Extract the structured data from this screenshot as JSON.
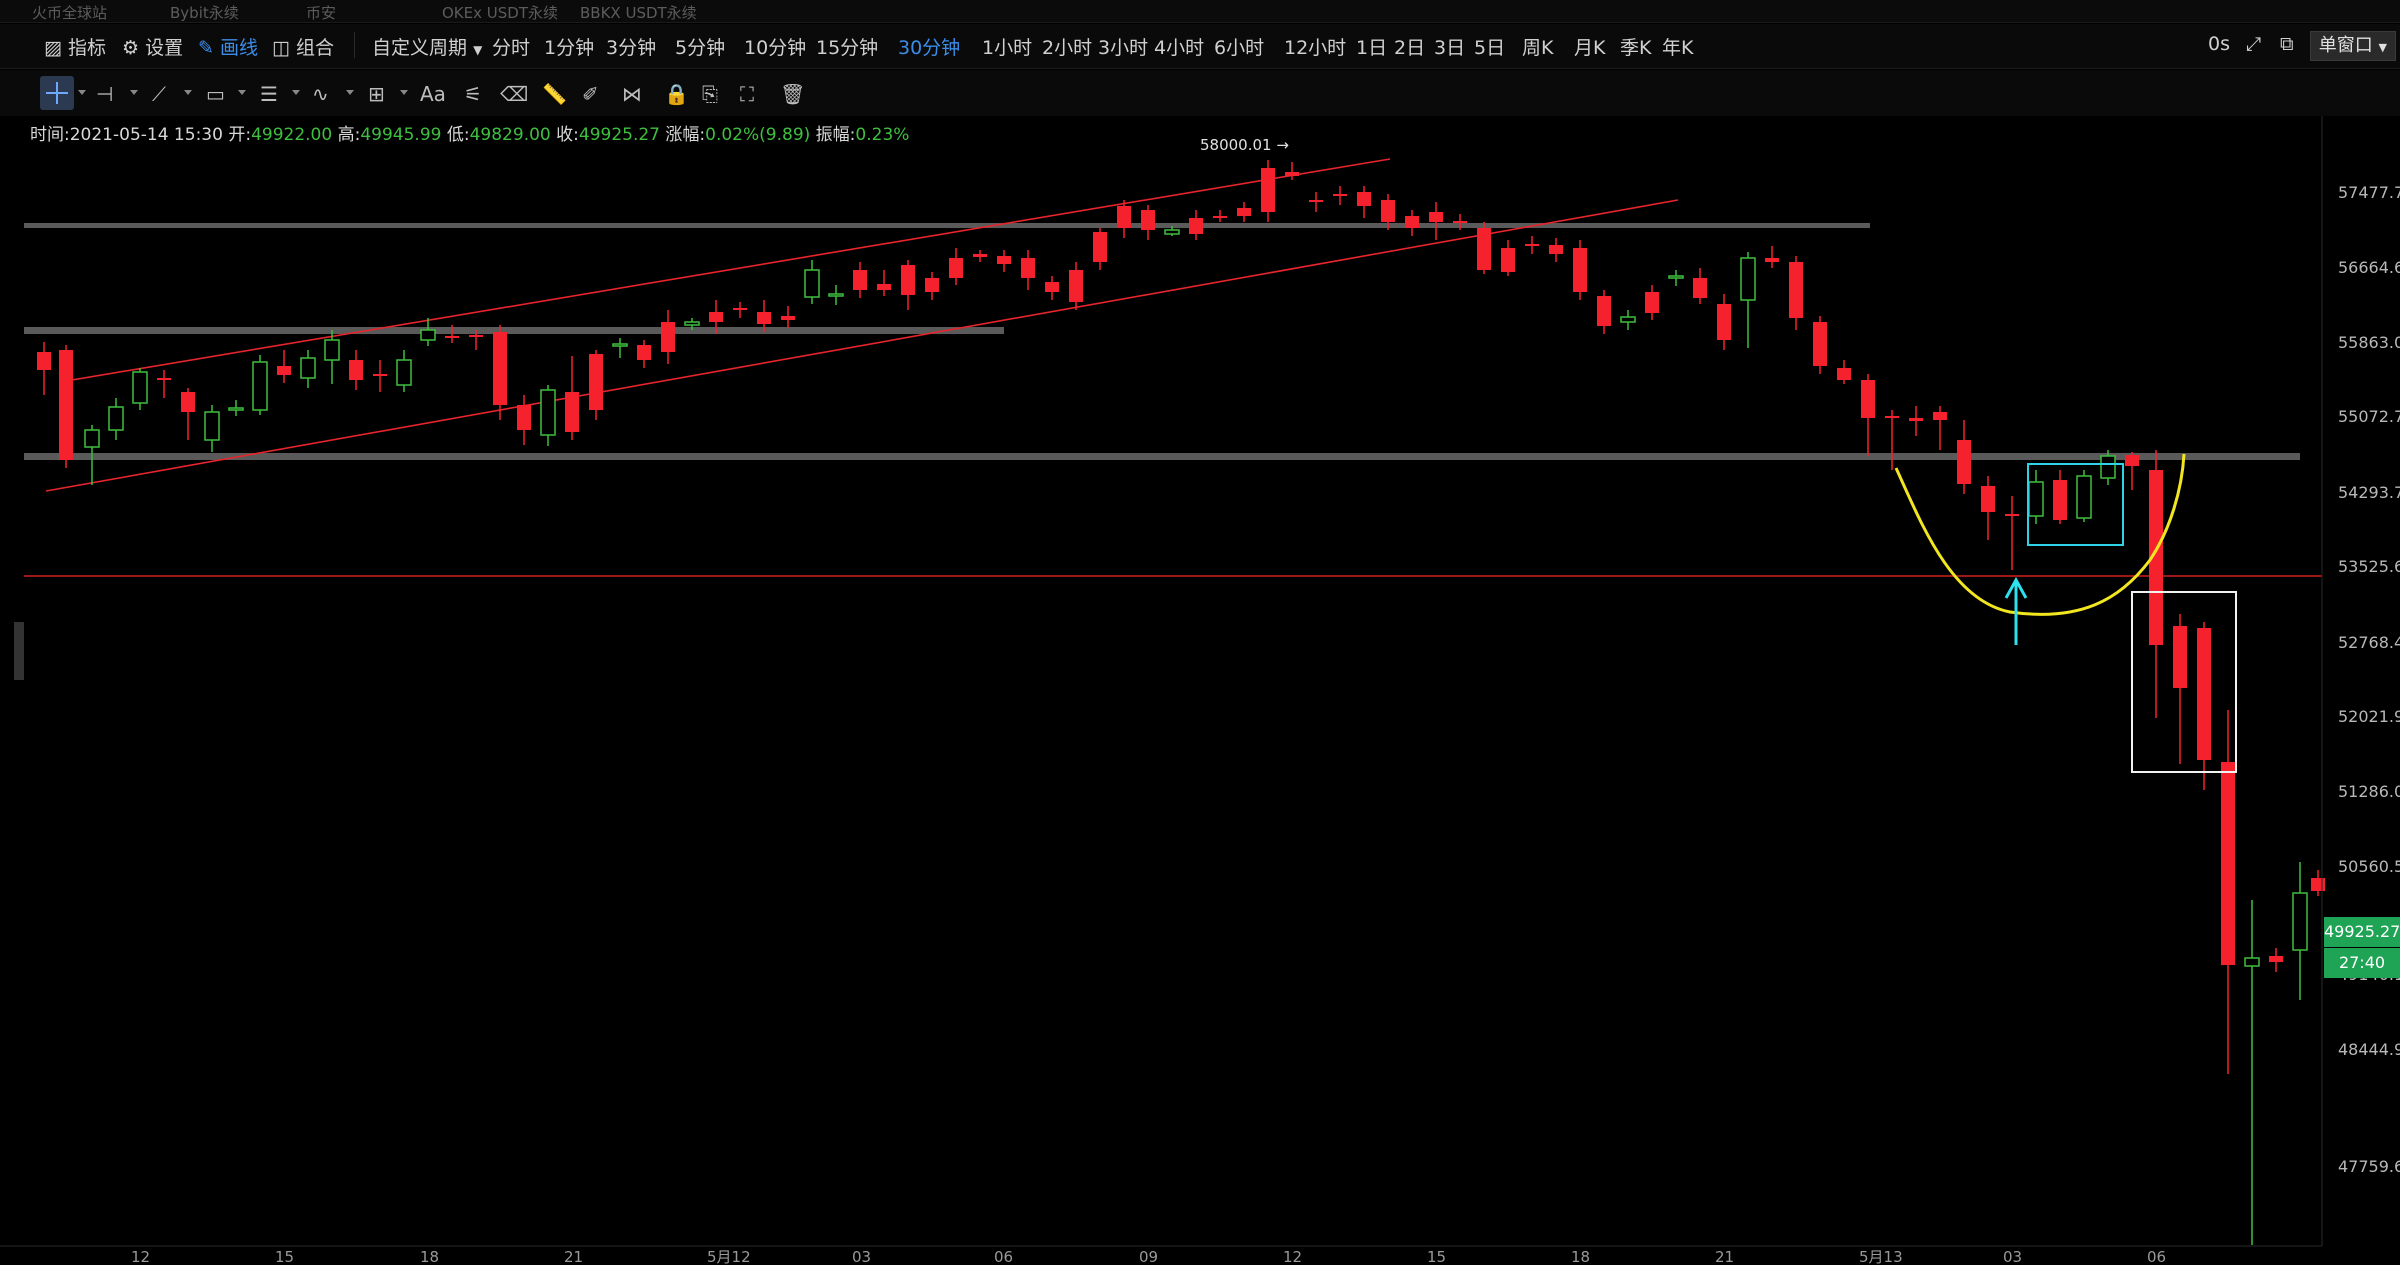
{
  "exchange_tabs": [
    "火币全球站",
    "Bybit永续",
    "币安",
    "OKEx USDT永续",
    "BBKX USDT永续"
  ],
  "toolbar": {
    "indicator": "指标",
    "settings": "设置",
    "draw": "画线",
    "combo": "组合",
    "custom_period": "自定义周期",
    "periods": [
      "分时",
      "1分钟",
      "3分钟",
      "5分钟",
      "10分钟",
      "15分钟",
      "30分钟",
      "1小时",
      "2小时",
      "3小时",
      "4小时",
      "6小时",
      "12小时",
      "1日",
      "2日",
      "3日",
      "5日",
      "周K",
      "月K",
      "季K",
      "年K"
    ],
    "active_period": "30分钟",
    "latency": "0s",
    "window_mode": "单窗口"
  },
  "draw_tools": {
    "text_tool": "Aa",
    "icons": [
      "crosshair-icon",
      "horizontal-line-icon",
      "trend-line-icon",
      "rectangle-icon",
      "parallel-channel-icon",
      "wave-icon",
      "measure-icon",
      "text-icon",
      "fib-icon",
      "eraser-icon",
      "ruler-icon",
      "brush-icon",
      "pattern-icon",
      "lock-icon",
      "copy-icon",
      "screenshot-icon",
      "delete-icon"
    ]
  },
  "ohlc": {
    "time_label": "时间:",
    "time": "2021-05-14 15:30",
    "open_label": "开:",
    "open": "49922.00",
    "high_label": "高:",
    "high": "49945.99",
    "low_label": "低:",
    "low": "49829.00",
    "close_label": "收:",
    "close": "49925.27",
    "change_label": "涨幅:",
    "change": "0.02%(9.89)",
    "amplitude_label": "振幅:",
    "amplitude": "0.23%"
  },
  "chart_data": {
    "type": "candlestick",
    "y_ticks": [
      "57477.7",
      "56664.6",
      "55863.0",
      "55072.7",
      "54293.7",
      "53525.6",
      "52768.4",
      "52021.9",
      "51286.0",
      "50560.5",
      "49140.1",
      "48444.9",
      "47759.6"
    ],
    "x_ticks": [
      "12",
      "15",
      "18",
      "21",
      "5月12",
      "03",
      "06",
      "09",
      "12",
      "15",
      "18",
      "21",
      "5月13",
      "03",
      "06"
    ],
    "peak_annotation": "58000.01 →",
    "last_price": "49925.27",
    "countdown": "27:40",
    "colors": {
      "up": "#3fbf3f",
      "down": "#f5222d",
      "background": "#000000",
      "last_price_tag": "#1fa354"
    }
  }
}
